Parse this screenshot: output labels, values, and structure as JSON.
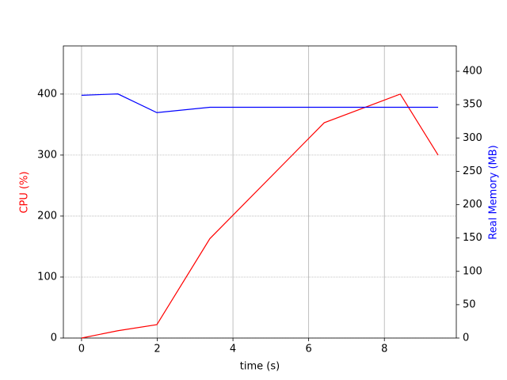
{
  "chart_data": {
    "type": "line",
    "x_label": "time (s)",
    "y_label": "CPU (%)",
    "y2_label": "Real Memory (MB)",
    "x": [
      0,
      0.96,
      1.99,
      3.39,
      6.41,
      8.42,
      9.42
    ],
    "series": [
      {
        "name": "CPU (%)",
        "color": "#ff0000",
        "values": [
          0,
          12,
          22,
          163,
          353,
          400,
          300
        ]
      },
      {
        "name": "Real Memory (MB)",
        "color": "#0000ff",
        "axis": "y2",
        "values": [
          364,
          366,
          338,
          346,
          346,
          346,
          346
        ]
      }
    ],
    "xlim": [
      -0.48,
      9.9
    ],
    "xticks": [
      0,
      2,
      4,
      6,
      8
    ],
    "ylim": [
      0,
      479
    ],
    "yticks": [
      0,
      100,
      200,
      300,
      400
    ],
    "y2lim": [
      0,
      438
    ],
    "y2ticks": [
      0,
      50,
      100,
      150,
      200,
      250,
      300,
      350,
      400
    ],
    "grid": true
  }
}
